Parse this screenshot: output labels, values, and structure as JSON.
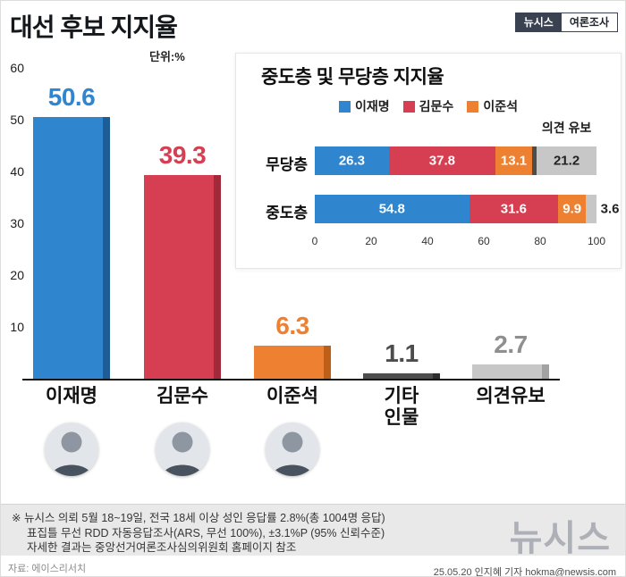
{
  "header": {
    "title": "대선 후보 지지율",
    "unit_label": "단위:%",
    "badge": {
      "brand": "뉴시스",
      "label": "여론조사"
    }
  },
  "colors": {
    "blue": "#2f86ce",
    "blue_dark": "#1d5c95",
    "red": "#d63e52",
    "red_dark": "#a12a3a",
    "orange": "#ee8032",
    "orange_dark": "#bd5f16",
    "dark_gray": "#4d4d4d",
    "dark_gray_dark": "#2e2e2e",
    "light_gray": "#c7c7c7",
    "light_gray_dark": "#a2a2a2",
    "value_gray": "#8f8f8f"
  },
  "chart_data": [
    {
      "type": "bar",
      "title": "대선 후보 지지율",
      "unit": "%",
      "categories": [
        "이재명",
        "김문수",
        "이준석",
        "기타\n인물",
        "의견유보"
      ],
      "values": [
        50.6,
        39.3,
        6.3,
        1.1,
        2.7
      ],
      "colors": [
        "blue",
        "red",
        "orange",
        "dark_gray",
        "light_gray"
      ],
      "value_label_colors": [
        "blue",
        "red",
        "orange",
        "dark_gray",
        "value_gray"
      ],
      "ylim": [
        0,
        60
      ],
      "yticks": [
        10,
        20,
        30,
        40,
        50,
        60
      ],
      "has_photo": [
        true,
        true,
        true,
        false,
        false
      ]
    },
    {
      "type": "stacked-bar-horizontal",
      "title": "중도층 및 무당층 지지율",
      "legend": [
        "이재명",
        "김문수",
        "이준석"
      ],
      "legend_colors": [
        "blue",
        "red",
        "orange"
      ],
      "reserve_label": "의견 유보",
      "xlim": [
        0,
        100
      ],
      "xticks": [
        0,
        20,
        40,
        60,
        80,
        100
      ],
      "rows": [
        {
          "label": "무당층",
          "segments": [
            {
              "name": "이재명",
              "value": 26.3,
              "color": "blue",
              "text": "26.3",
              "text_color": "#ffffff"
            },
            {
              "name": "김문수",
              "value": 37.8,
              "color": "red",
              "text": "37.8",
              "text_color": "#ffffff"
            },
            {
              "name": "이준석",
              "value": 13.1,
              "color": "orange",
              "text": "13.1",
              "text_color": "#ffffff"
            },
            {
              "name": "기타",
              "value": 1.6,
              "color": "dark_gray",
              "text": "",
              "text_color": "#ffffff"
            },
            {
              "name": "의견 유보",
              "value": 21.2,
              "color": "light_gray",
              "text": "21.2",
              "text_color": "#222222"
            }
          ]
        },
        {
          "label": "중도층",
          "segments": [
            {
              "name": "이재명",
              "value": 54.8,
              "color": "blue",
              "text": "54.8",
              "text_color": "#ffffff"
            },
            {
              "name": "김문수",
              "value": 31.6,
              "color": "red",
              "text": "31.6",
              "text_color": "#ffffff"
            },
            {
              "name": "이준석",
              "value": 9.9,
              "color": "orange",
              "text": "9.9",
              "text_color": "#ffffff"
            },
            {
              "name": "의견 유보",
              "value": 3.6,
              "color": "light_gray",
              "text": "3.6",
              "text_color": "#222222",
              "text_outside": true
            }
          ]
        }
      ]
    }
  ],
  "footer": {
    "notes": [
      "※ 뉴시스 의뢰 5월 18~19일, 전국 18세 이상 성인 응답률 2.8%(총 1004명 응답)",
      "표집틀 무선 RDD 자동응답조사(ARS, 무선 100%), ±3.1%P (95% 신뢰수준)",
      "자세한 결과는 중앙선거여론조사심의위원회 홈페이지 참조"
    ],
    "source": "자료: 에이스리서치",
    "logo": "뉴시스",
    "credit": "25.05.20 인지혜 기자 hokma@newsis.com"
  }
}
